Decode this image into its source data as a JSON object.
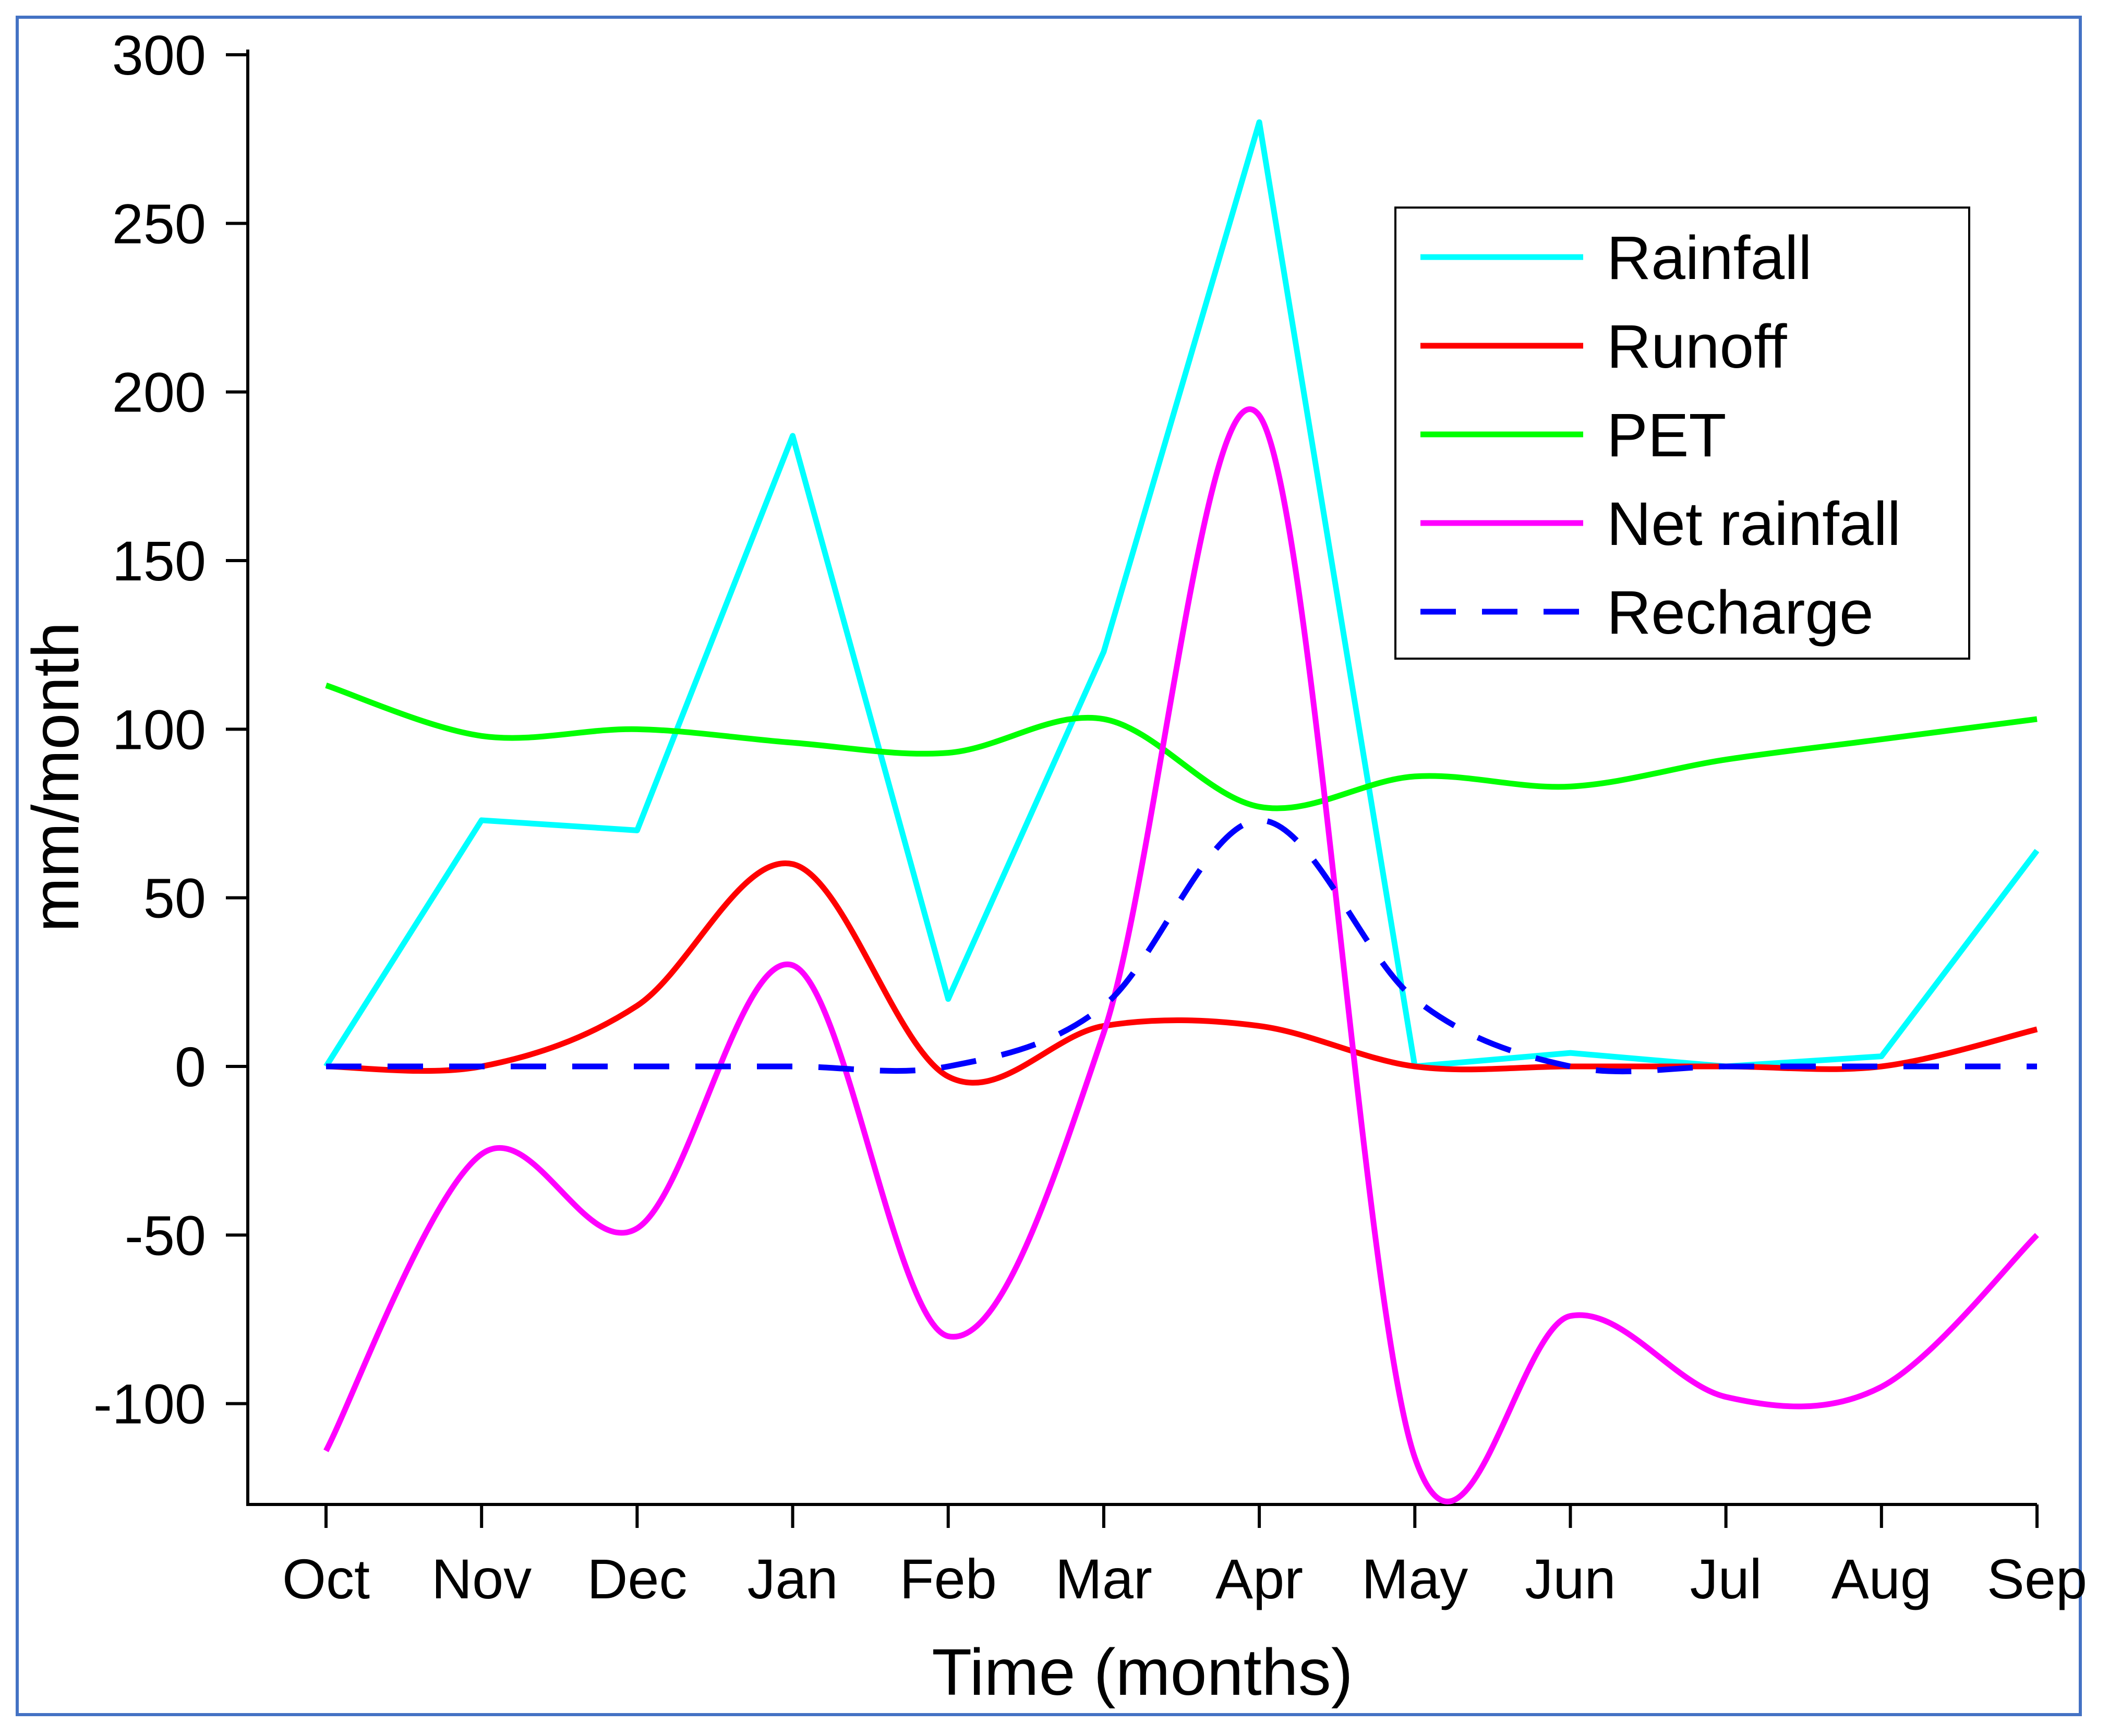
{
  "chart_data": {
    "type": "line",
    "title": "",
    "xlabel": "Time (months)",
    "ylabel": "mm/month",
    "categories": [
      "Oct",
      "Nov",
      "Dec",
      "Jan",
      "Feb",
      "Mar",
      "Apr",
      "May",
      "Jun",
      "Jul",
      "Aug",
      "Sep"
    ],
    "ylim": [
      -130,
      300
    ],
    "yticks": [
      -100,
      -50,
      0,
      50,
      100,
      150,
      200,
      250,
      300
    ],
    "grid": false,
    "legend_position": "top-right",
    "series": [
      {
        "name": "Rainfall",
        "color": "#00ffff",
        "style": "solid",
        "smooth": false,
        "values": [
          0,
          73,
          70,
          187,
          20,
          123,
          280,
          0,
          4,
          0,
          3,
          64
        ]
      },
      {
        "name": "Runoff",
        "color": "#ff0000",
        "style": "solid",
        "smooth": true,
        "values": [
          0,
          0,
          18,
          60,
          -3,
          12,
          12,
          0,
          0,
          0,
          0,
          11
        ]
      },
      {
        "name": "PET",
        "color": "#00ff00",
        "style": "solid",
        "smooth": true,
        "values": [
          113,
          98,
          100,
          96,
          93,
          103,
          77,
          86,
          83,
          91,
          97,
          103
        ]
      },
      {
        "name": "Net rainfall",
        "color": "#ff00ff",
        "style": "solid",
        "smooth": true,
        "values": [
          -114,
          -26,
          -48,
          30,
          -80,
          10,
          193,
          -116,
          -74,
          -98,
          -95,
          -50
        ]
      },
      {
        "name": "Recharge",
        "color": "#0000ff",
        "style": "dashed",
        "smooth": true,
        "values": [
          0,
          0,
          0,
          0,
          0,
          18,
          73,
          20,
          0,
          0,
          0,
          0
        ]
      }
    ]
  }
}
